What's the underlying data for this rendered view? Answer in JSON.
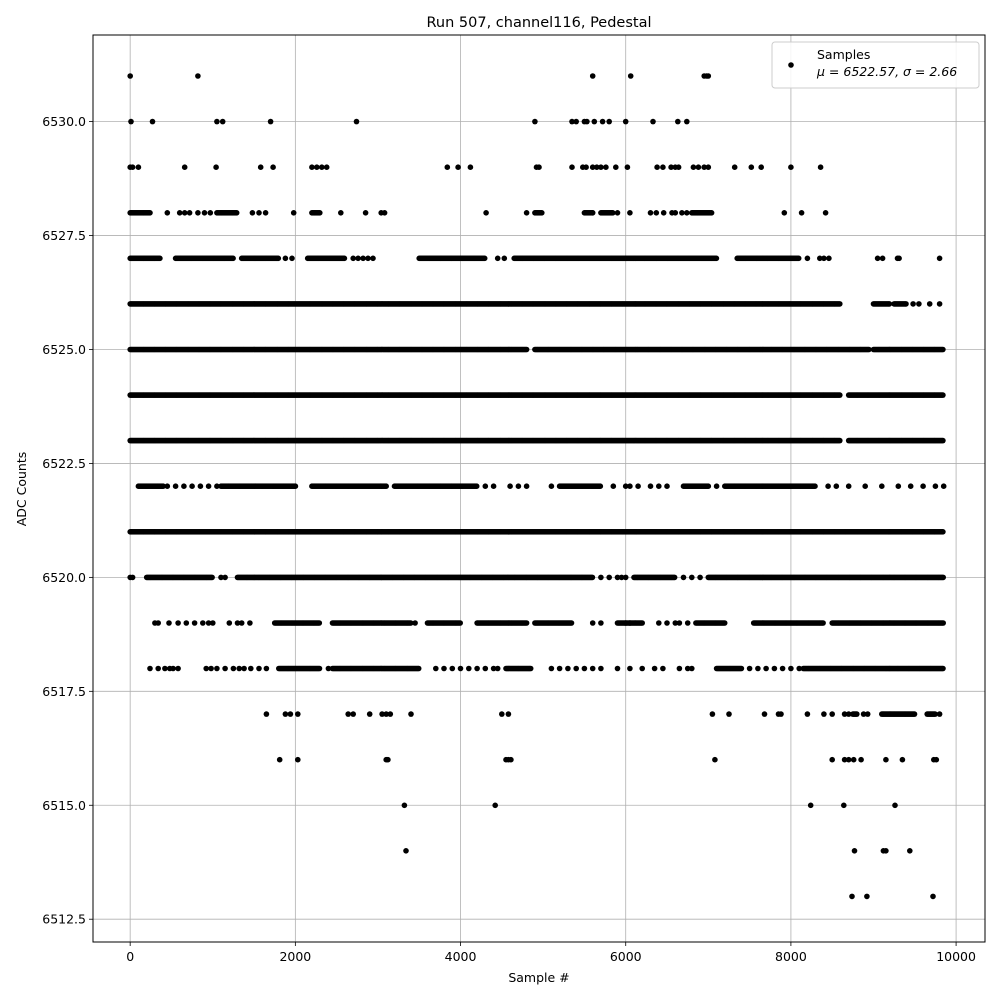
{
  "chart_data": {
    "type": "scatter",
    "title": "Run 507, channel116, Pedestal",
    "xlabel": "Sample #",
    "ylabel": "ADC Counts",
    "xlim": [
      -450,
      10350
    ],
    "ylim": [
      6512.0,
      6531.9
    ],
    "xticks": [
      0,
      2000,
      4000,
      6000,
      8000,
      10000
    ],
    "yticks": [
      6512.5,
      6515.0,
      6517.5,
      6520.0,
      6522.5,
      6525.0,
      6527.5,
      6530.0
    ],
    "xtick_labels": [
      "0",
      "2000",
      "4000",
      "6000",
      "8000",
      "10000"
    ],
    "ytick_labels": [
      "6512.5",
      "6515.0",
      "6517.5",
      "6520.0",
      "6522.5",
      "6525.0",
      "6527.5",
      "6530.0"
    ],
    "grid": true,
    "legend": {
      "position": "top-right",
      "label": "Samples",
      "stats": "μ = 6522.57, σ = 2.66"
    },
    "series": [
      {
        "name": "Samples",
        "color": "#000000",
        "marker": "circle",
        "samples": 9850,
        "mean": 6522.57,
        "sigma": 2.66,
        "levels": [
          {
            "y": 6531,
            "ranges": [],
            "points": [
              0,
              820,
              5600,
              6060,
              6950,
              6980,
              7000
            ]
          },
          {
            "y": 6530,
            "ranges": [],
            "points": [
              10,
              270,
              1050,
              1120,
              1700,
              2740,
              4900,
              5350,
              5400,
              5500,
              5530,
              5620,
              5720,
              5800,
              6000,
              6330,
              6630,
              6740
            ]
          },
          {
            "y": 6529,
            "ranges": [],
            "points": [
              0,
              30,
              100,
              660,
              1040,
              1580,
              1730,
              2200,
              2260,
              2320,
              2380,
              3840,
              3970,
              4120,
              4920,
              4950,
              5350,
              5480,
              5520,
              5600,
              5650,
              5700,
              5760,
              5880,
              6020,
              6380,
              6450,
              6550,
              6600,
              6640,
              6820,
              6880,
              6950,
              7000,
              7320,
              7520,
              7640,
              8000,
              8360
            ]
          },
          {
            "y": 6528,
            "ranges": [
              [
                0,
                250
              ],
              [
                1050,
                1300
              ],
              [
                2200,
                2300
              ],
              [
                4900,
                4990
              ],
              [
                5500,
                5600
              ],
              [
                5700,
                5850
              ],
              [
                6800,
                7050
              ]
            ],
            "points": [
              450,
              600,
              660,
              720,
              820,
              900,
              970,
              1480,
              1560,
              1640,
              1980,
              2550,
              2850,
              3040,
              3080,
              4310,
              4800,
              5600,
              5900,
              6050,
              6300,
              6370,
              6460,
              6560,
              6600,
              6680,
              6740,
              7920,
              8130,
              8420
            ]
          },
          {
            "y": 6527,
            "ranges": [
              [
                0,
                370
              ],
              [
                550,
                1250
              ],
              [
                1350,
                1800
              ],
              [
                2150,
                2600
              ],
              [
                3500,
                4300
              ],
              [
                4650,
                7100
              ],
              [
                7350,
                8100
              ]
            ],
            "points": [
              1880,
              1960,
              2700,
              2760,
              2820,
              2880,
              2940,
              4450,
              4530,
              8200,
              8350,
              8400,
              8460,
              9050,
              9110,
              9290,
              9310,
              9800
            ]
          },
          {
            "y": 6526,
            "ranges": [
              [
                0,
                8600
              ],
              [
                9000,
                9200
              ],
              [
                9250,
                9400
              ]
            ],
            "points": [
              9480,
              9550,
              9680,
              9800
            ]
          },
          {
            "y": 6525,
            "ranges": [
              [
                0,
                4800
              ],
              [
                4900,
                8950
              ],
              [
                9000,
                9850
              ]
            ],
            "points": []
          },
          {
            "y": 6524,
            "ranges": [
              [
                0,
                8600
              ],
              [
                8700,
                9850
              ]
            ],
            "points": []
          },
          {
            "y": 6523,
            "ranges": [
              [
                0,
                8600
              ],
              [
                8700,
                9850
              ]
            ],
            "points": []
          },
          {
            "y": 6522,
            "ranges": [
              [
                100,
                400
              ],
              [
                1100,
                2000
              ],
              [
                2200,
                3100
              ],
              [
                3200,
                4200
              ],
              [
                5200,
                5700
              ],
              [
                6700,
                7000
              ],
              [
                7200,
                8300
              ]
            ],
            "points": [
              450,
              550,
              650,
              750,
              850,
              950,
              1050,
              4300,
              4400,
              4600,
              4700,
              4800,
              5100,
              5850,
              6000,
              6050,
              6150,
              6300,
              6400,
              6500,
              7100,
              8450,
              8550,
              8700,
              8900,
              9100,
              9300,
              9450,
              9600,
              9750,
              9850
            ]
          },
          {
            "y": 6521,
            "ranges": [
              [
                0,
                9850
              ]
            ],
            "points": []
          },
          {
            "y": 6520,
            "ranges": [
              [
                200,
                1000
              ],
              [
                1300,
                5600
              ],
              [
                6100,
                6600
              ],
              [
                7000,
                9850
              ]
            ],
            "points": [
              0,
              30,
              1100,
              1150,
              5700,
              5800,
              5900,
              5950,
              6000,
              6700,
              6800,
              6900
            ]
          },
          {
            "y": 6519,
            "ranges": [
              [
                1750,
                2300
              ],
              [
                2450,
                3400
              ],
              [
                3600,
                4000
              ],
              [
                4200,
                4800
              ],
              [
                4900,
                5350
              ],
              [
                5900,
                6200
              ],
              [
                6850,
                7200
              ],
              [
                7550,
                8400
              ],
              [
                8500,
                9850
              ]
            ],
            "points": [
              300,
              340,
              470,
              580,
              680,
              780,
              880,
              950,
              1000,
              1200,
              1300,
              1350,
              1450,
              3450,
              5600,
              5700,
              6000,
              6050,
              6400,
              6500,
              6600,
              6650,
              6750
            ]
          },
          {
            "y": 6518,
            "ranges": [
              [
                1800,
                2300
              ],
              [
                2450,
                3500
              ],
              [
                4550,
                4850
              ],
              [
                7100,
                7400
              ],
              [
                8150,
                9850
              ]
            ],
            "points": [
              240,
              340,
              420,
              480,
              520,
              580,
              920,
              980,
              1050,
              1150,
              1250,
              1320,
              1380,
              1460,
              1560,
              1650,
              2400,
              3700,
              3800,
              3900,
              4000,
              4100,
              4200,
              4300,
              4400,
              4450,
              5100,
              5200,
              5300,
              5400,
              5500,
              5600,
              5700,
              5900,
              6050,
              6200,
              6350,
              6450,
              6650,
              6750,
              6800,
              7500,
              7600,
              7700,
              7800,
              7900,
              8000,
              8100
            ]
          },
          {
            "y": 6517,
            "ranges": [
              [
                8750,
                8800
              ],
              [
                9100,
                9500
              ],
              [
                9650,
                9750
              ]
            ],
            "points": [
              1650,
              1880,
              1940,
              2030,
              2640,
              2700,
              2900,
              3050,
              3100,
              3150,
              3400,
              4500,
              4580,
              7050,
              7250,
              7680,
              7850,
              7880,
              8200,
              8400,
              8500,
              8650,
              8700,
              8880,
              8930,
              9800
            ]
          },
          {
            "y": 6516,
            "ranges": [],
            "points": [
              1810,
              2030,
              3100,
              3120,
              4550,
              4580,
              4610,
              7080,
              8500,
              8650,
              8700,
              8760,
              8850,
              9150,
              9350,
              9730,
              9760
            ]
          },
          {
            "y": 6515,
            "ranges": [],
            "points": [
              3320,
              4420,
              8240,
              8640,
              9260
            ]
          },
          {
            "y": 6514,
            "ranges": [],
            "points": [
              3340,
              8770,
              9120,
              9150,
              9440
            ]
          },
          {
            "y": 6513,
            "ranges": [],
            "points": [
              8740,
              8920,
              9720
            ]
          }
        ]
      }
    ]
  }
}
